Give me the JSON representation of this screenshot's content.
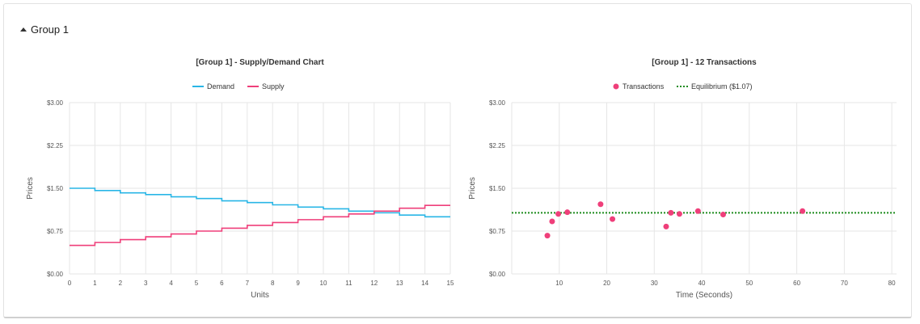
{
  "group": {
    "label": "Group 1"
  },
  "colors": {
    "demand": "#29b6e6",
    "supply": "#ef3f7a",
    "transactions": "#ef3f7a",
    "equilibrium": "#1e8c1e",
    "grid": "#e6e6e6"
  },
  "chart_data": [
    {
      "type": "line",
      "title": "[Group 1] - Supply/Demand Chart",
      "xlabel": "Units",
      "ylabel": "Prices",
      "xlim": [
        0,
        15
      ],
      "ylim": [
        0,
        3
      ],
      "x_ticks": [
        "0",
        "1",
        "2",
        "3",
        "4",
        "5",
        "6",
        "7",
        "8",
        "9",
        "10",
        "11",
        "12",
        "13",
        "14",
        "15"
      ],
      "y_ticks": [
        "$0.00",
        "$0.75",
        "$1.50",
        "$2.25",
        "$3.00"
      ],
      "legend": [
        "Demand",
        "Supply"
      ],
      "legend_position": "top-center",
      "grid": true,
      "series": [
        {
          "name": "Demand",
          "step": true,
          "x": [
            0,
            1,
            2,
            3,
            4,
            5,
            6,
            7,
            8,
            9,
            10,
            11,
            12,
            13,
            14,
            15
          ],
          "values": [
            1.5,
            1.46,
            1.42,
            1.39,
            1.35,
            1.32,
            1.28,
            1.25,
            1.21,
            1.17,
            1.14,
            1.1,
            1.07,
            1.03,
            1.0,
            1.0
          ]
        },
        {
          "name": "Supply",
          "step": true,
          "x": [
            0,
            1,
            2,
            3,
            4,
            5,
            6,
            7,
            8,
            9,
            10,
            11,
            12,
            13,
            14,
            15
          ],
          "values": [
            0.5,
            0.55,
            0.6,
            0.65,
            0.7,
            0.75,
            0.8,
            0.85,
            0.9,
            0.95,
            1.0,
            1.05,
            1.1,
            1.15,
            1.2,
            1.2
          ]
        }
      ]
    },
    {
      "type": "scatter",
      "title": "[Group 1] - 12 Transactions",
      "xlabel": "Time (Seconds)",
      "ylabel": "Prices",
      "xlim": [
        0,
        81
      ],
      "ylim": [
        0,
        3
      ],
      "x_ticks": [
        "10",
        "20",
        "30",
        "40",
        "50",
        "60",
        "70",
        "80"
      ],
      "y_ticks": [
        "$0.00",
        "$0.75",
        "$1.50",
        "$2.25",
        "$3.00"
      ],
      "legend": [
        "Transactions",
        "Equilibrium ($1.07)"
      ],
      "legend_position": "top-center",
      "grid": true,
      "equilibrium": 1.07,
      "points": [
        {
          "x": 7.5,
          "y": 0.67
        },
        {
          "x": 8.5,
          "y": 0.92
        },
        {
          "x": 9.8,
          "y": 1.05
        },
        {
          "x": 11.7,
          "y": 1.08
        },
        {
          "x": 18.7,
          "y": 1.22
        },
        {
          "x": 21.2,
          "y": 0.96
        },
        {
          "x": 32.5,
          "y": 0.83
        },
        {
          "x": 33.5,
          "y": 1.07
        },
        {
          "x": 35.3,
          "y": 1.05
        },
        {
          "x": 39.2,
          "y": 1.1
        },
        {
          "x": 44.5,
          "y": 1.04
        },
        {
          "x": 61.2,
          "y": 1.1
        }
      ]
    }
  ]
}
